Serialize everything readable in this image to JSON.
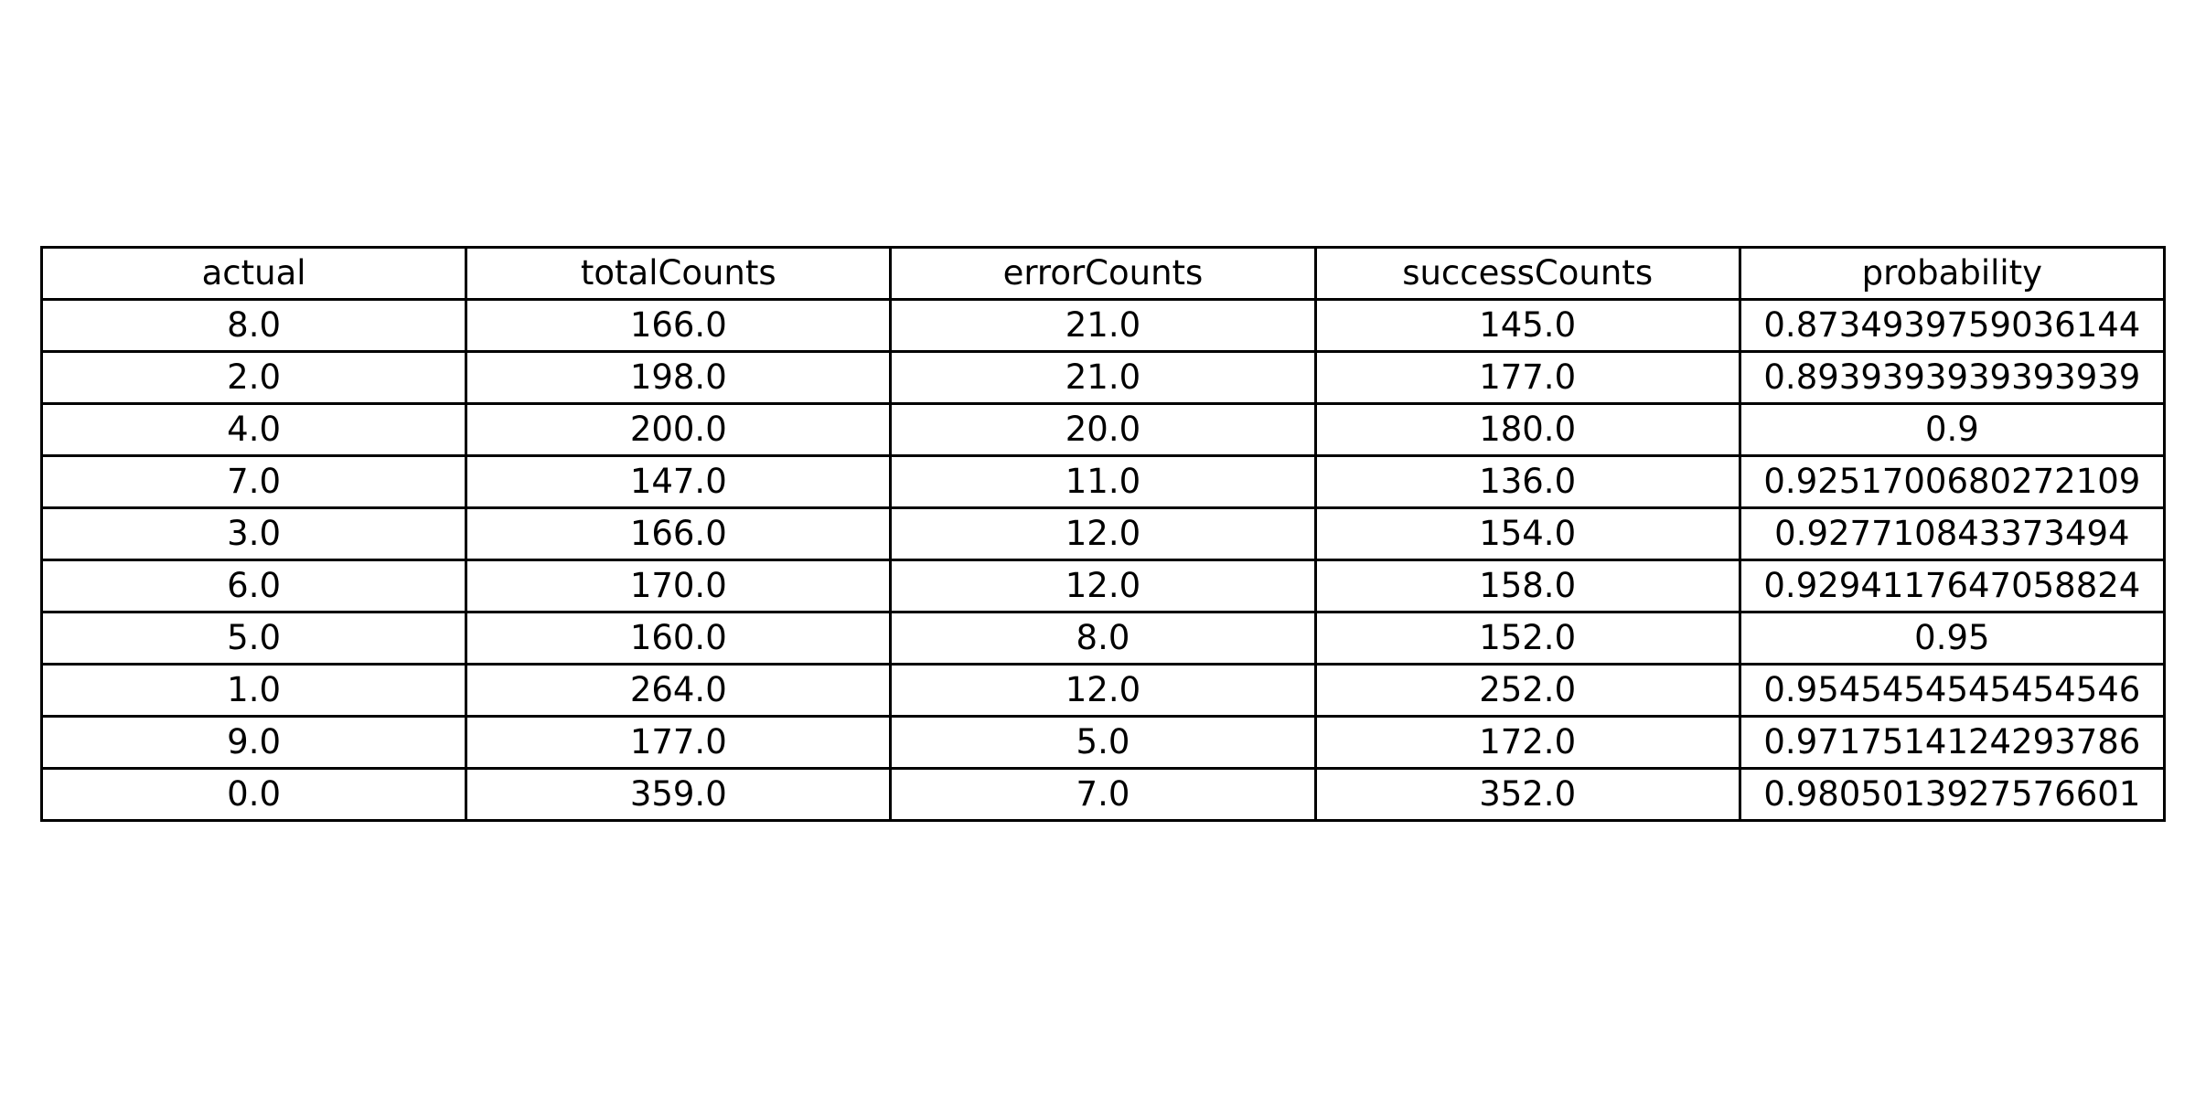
{
  "chart_data": {
    "type": "table",
    "columns": [
      "actual",
      "totalCounts",
      "errorCounts",
      "successCounts",
      "probability"
    ],
    "rows": [
      [
        "8.0",
        "166.0",
        "21.0",
        "145.0",
        "0.8734939759036144"
      ],
      [
        "2.0",
        "198.0",
        "21.0",
        "177.0",
        "0.8939393939393939"
      ],
      [
        "4.0",
        "200.0",
        "20.0",
        "180.0",
        "0.9"
      ],
      [
        "7.0",
        "147.0",
        "11.0",
        "136.0",
        "0.9251700680272109"
      ],
      [
        "3.0",
        "166.0",
        "12.0",
        "154.0",
        "0.927710843373494"
      ],
      [
        "6.0",
        "170.0",
        "12.0",
        "158.0",
        "0.9294117647058824"
      ],
      [
        "5.0",
        "160.0",
        "8.0",
        "152.0",
        "0.95"
      ],
      [
        "1.0",
        "264.0",
        "12.0",
        "252.0",
        "0.9545454545454546"
      ],
      [
        "9.0",
        "177.0",
        "5.0",
        "172.0",
        "0.9717514124293786"
      ],
      [
        "0.0",
        "359.0",
        "7.0",
        "352.0",
        "0.9805013927576601"
      ]
    ],
    "border_color": "#000000",
    "text_color": "#000000",
    "background_color": "#ffffff"
  }
}
